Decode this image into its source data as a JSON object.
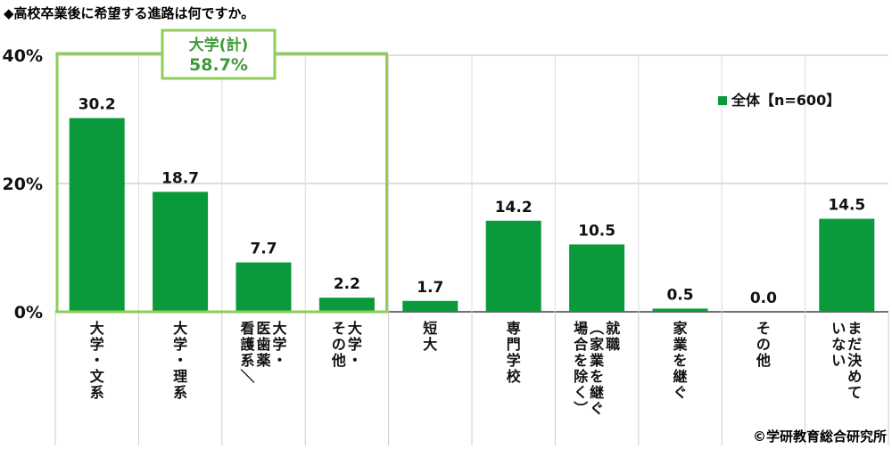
{
  "title": "◆高校卒業後に希望する進路は何ですか。",
  "copyright": "©学研教育総合研究所",
  "colors": {
    "bar": "#0a9a3c",
    "highlight": "#8fcc5a",
    "callout_text": "#3f9a3a",
    "grid": "#bbbbbb",
    "axis": "#444444"
  },
  "chart_data": {
    "type": "bar",
    "title": "◆高校卒業後に希望する進路は何ですか。",
    "xlabel": "",
    "ylabel": "",
    "ylim": [
      0,
      40
    ],
    "yticks": [
      0,
      20,
      40
    ],
    "ytick_labels": [
      "0%",
      "20%",
      "40%"
    ],
    "categories": [
      "大学・文系",
      "大学・理系",
      "大学・医歯薬・看護系／",
      "大学・その他",
      "短大",
      "専門学校",
      "就職（家業を継ぐ場合を除く）",
      "家業を継ぐ",
      "その他",
      "まだ決めていない"
    ],
    "category_columns": [
      [
        "大学・文系"
      ],
      [
        "大学・理系"
      ],
      [
        "大学・",
        "医歯薬",
        "看護系／"
      ],
      [
        "大学・",
        "その他"
      ],
      [
        "短大"
      ],
      [
        "専門学校"
      ],
      [
        "就職",
        "（家業を継ぐ",
        "場合を除く）"
      ],
      [
        "家業を継ぐ"
      ],
      [
        "その他"
      ],
      [
        "まだ決めて",
        "いない"
      ]
    ],
    "series": [
      {
        "name": "全体【n=600】",
        "values": [
          30.2,
          18.7,
          7.7,
          2.2,
          1.7,
          14.2,
          10.5,
          0.5,
          0.0,
          14.5
        ]
      }
    ],
    "value_labels": [
      "30.2",
      "18.7",
      "7.7",
      "2.2",
      "1.7",
      "14.2",
      "10.5",
      "0.5",
      "0.0",
      "14.5"
    ],
    "legend": {
      "label": "全体【n=600】",
      "position": "top-right"
    },
    "annotation": {
      "label": "大学(計)",
      "value": "58.7%",
      "group_start": 0,
      "group_end": 3
    }
  }
}
